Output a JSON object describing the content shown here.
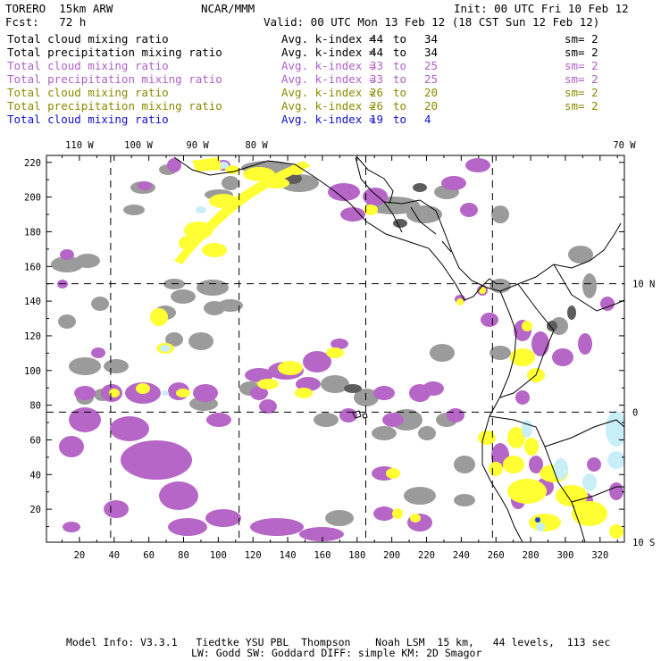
{
  "header": {
    "model_title": "TORERO  15km ARW",
    "center": "NCAR/MMM",
    "init": "Init: 00 UTC Fri 10 Feb 12",
    "forecast": "Fcst:   72 h",
    "valid": "Valid: 00 UTC Mon 13 Feb 12 (18 CST Sun 12 Feb 12)"
  },
  "legend": [
    {
      "field": "Total cloud mixing ratio",
      "index_label": "Avg. k-index =",
      "from": "44",
      "to_word": "to",
      "to": "34",
      "smooth": "sm= 2",
      "color": "#000000"
    },
    {
      "field": "Total precipitation mixing ratio",
      "index_label": "Avg. k-index =",
      "from": "44",
      "to_word": "to",
      "to": "34",
      "smooth": "sm= 2",
      "color": "#000000"
    },
    {
      "field": "Total cloud mixing ratio",
      "index_label": "Avg. k-index =",
      "from": "33",
      "to_word": "to",
      "to": "25",
      "smooth": "sm= 2",
      "color": "#b060c8"
    },
    {
      "field": "Total precipitation mixing ratio",
      "index_label": "Avg. k-index =",
      "from": "33",
      "to_word": "to",
      "to": "25",
      "smooth": "sm= 2",
      "color": "#b060c8"
    },
    {
      "field": "Total cloud mixing ratio",
      "index_label": "Avg. k-index =",
      "from": "26",
      "to_word": "to",
      "to": "20",
      "smooth": "sm= 2",
      "color": "#8a8a00"
    },
    {
      "field": "Total precipitation mixing ratio",
      "index_label": "Avg. k-index =",
      "from": "26",
      "to_word": "to",
      "to": "20",
      "smooth": "sm= 2",
      "color": "#8a8a00"
    },
    {
      "field": "Total cloud mixing ratio",
      "index_label": "Avg. k-index =",
      "from": "19",
      "to_word": "to",
      "to": "4",
      "smooth": "",
      "color": "#1010cc"
    }
  ],
  "map": {
    "lon_labels": [
      "110 W",
      "100 W",
      "90 W",
      "80 W",
      "70 W"
    ],
    "lon_label_x": [
      20,
      54,
      88,
      122,
      156
    ],
    "lat_labels": [
      "10 N",
      "0",
      "10 S"
    ],
    "lat_label_y": [
      150,
      76,
      2
    ],
    "x_ticks": [
      20,
      40,
      60,
      80,
      100,
      120,
      140,
      160,
      180,
      200,
      220,
      240,
      260,
      280,
      300,
      320
    ],
    "y_ticks": [
      20,
      40,
      60,
      80,
      100,
      120,
      140,
      160,
      180,
      200,
      220
    ],
    "xlim": [
      1,
      334
    ],
    "ylim": [
      1,
      224
    ],
    "grid_x": [
      38,
      112,
      185,
      258
    ],
    "grid_y": [
      76,
      150
    ],
    "colors": {
      "gray_cloud": "#9b9b9b",
      "dark_cloud": "#5c5c5c",
      "purple": "#b666c6",
      "yellow": "#ffff33",
      "light_blue": "#c8eef8",
      "blue": "#2040e0"
    }
  },
  "footer": {
    "line1": "Model Info: V3.3.1   Tiedtke YSU PBL  Thompson    Noah LSM  15 km,   44 levels,  113 sec",
    "line2": "LW: Godd SW: Goddard DIFF: simple KM: 2D Smagor"
  }
}
